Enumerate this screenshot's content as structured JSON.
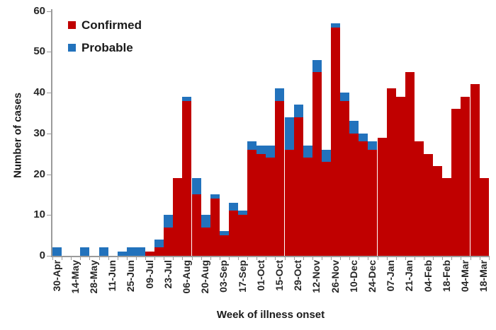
{
  "chart_data": {
    "type": "bar",
    "stacked": true,
    "title": "",
    "xlabel": "Week of illness onset",
    "ylabel": "Number of cases",
    "ylim": [
      0,
      60
    ],
    "yticks": [
      0,
      10,
      20,
      30,
      40,
      50,
      60
    ],
    "grid": false,
    "legend_position": "top-left-inside",
    "legend": [
      {
        "label": "Confirmed",
        "color": "#c00000"
      },
      {
        "label": "Probable",
        "color": "#2272bc"
      }
    ],
    "categories": [
      "30-Apr",
      "",
      "14-May",
      "",
      "28-May",
      "",
      "11-Jun",
      "",
      "25-Jun",
      "",
      "09-Jul",
      "",
      "23-Jul",
      "",
      "06-Aug",
      "",
      "20-Aug",
      "",
      "03-Sep",
      "",
      "17-Sep",
      "",
      "01-Oct",
      "",
      "15-Oct",
      "",
      "29-Oct",
      "",
      "12-Nov",
      "",
      "26-Nov",
      "",
      "10-Dec",
      "",
      "24-Dec",
      "",
      "07-Jan",
      "",
      "21-Jan",
      "",
      "04-Feb",
      "",
      "18-Feb",
      "",
      "04-Mar",
      "",
      "18-Mar"
    ],
    "series": [
      {
        "name": "Confirmed",
        "color": "#c00000",
        "values": [
          0,
          0,
          0,
          0,
          0,
          0,
          0,
          0,
          0,
          0,
          1,
          2,
          7,
          19,
          38,
          15,
          7,
          14,
          5,
          11,
          10,
          26,
          25,
          24,
          38,
          26,
          34,
          24,
          45,
          23,
          56,
          38,
          30,
          28,
          26,
          29,
          41,
          39,
          45,
          28,
          25,
          22,
          19,
          36,
          39,
          42,
          19
        ]
      },
      {
        "name": "Probable",
        "color": "#2272bc",
        "values": [
          2,
          0,
          0,
          2,
          0,
          2,
          0,
          1,
          2,
          2,
          0,
          2,
          3,
          0,
          1,
          4,
          3,
          1,
          1,
          2,
          1,
          2,
          2,
          3,
          3,
          8,
          3,
          3,
          3,
          3,
          1,
          2,
          3,
          2,
          2,
          0,
          0,
          0,
          0,
          0,
          0,
          0,
          0,
          0,
          0,
          0,
          0
        ]
      }
    ]
  },
  "axes": {
    "x_title": "Week of illness onset",
    "y_title": "Number of cases"
  }
}
